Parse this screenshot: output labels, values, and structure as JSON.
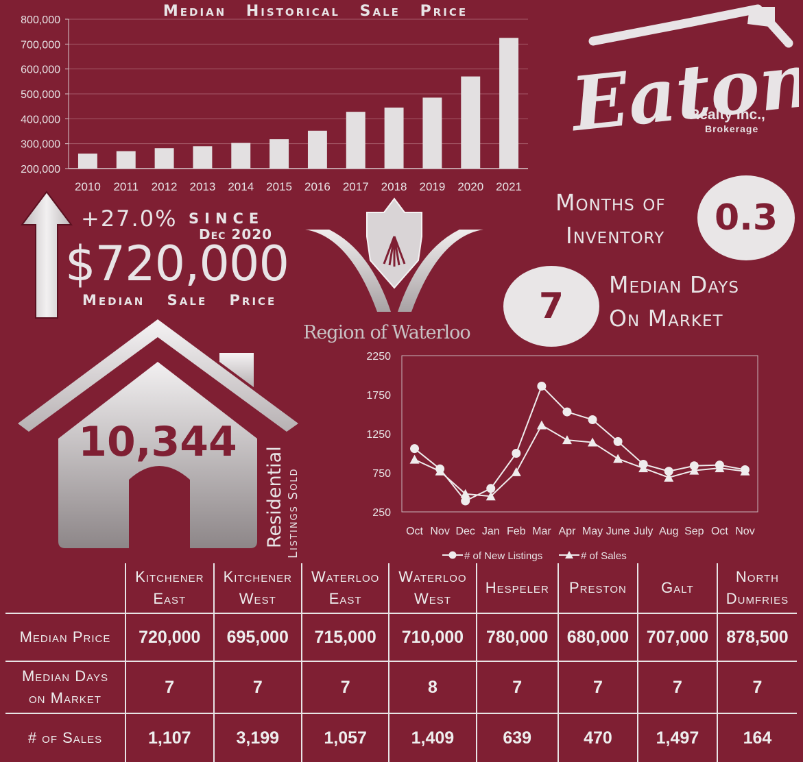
{
  "bar_chart_title": "Median Historical Sale Price",
  "logo": {
    "name": "Eaton",
    "line1": "Realty Inc.,",
    "line2": "Brokerage"
  },
  "price_panel": {
    "change": "+27.0%",
    "since_label": "since",
    "since_date": "Dec 2020",
    "price": "$720,000",
    "caption": "Median Sale Price"
  },
  "region_logo_text": "Region of Waterloo",
  "inventory": {
    "label_line1": "Months of",
    "label_line2": "Inventory",
    "value": "0.3"
  },
  "days_on_market": {
    "value": "7",
    "label_line1": "Median Days",
    "label_line2": "On Market"
  },
  "listings": {
    "value": "10,344",
    "label1": "Residential",
    "label2": "Listings Sold"
  },
  "chart_data": [
    {
      "type": "bar",
      "title": "Median Historical Sale Price",
      "categories": [
        "2010",
        "2011",
        "2012",
        "2013",
        "2014",
        "2015",
        "2016",
        "2017",
        "2018",
        "2019",
        "2020",
        "2021"
      ],
      "values": [
        260000,
        270000,
        282000,
        290000,
        303000,
        318000,
        352000,
        428000,
        445000,
        485000,
        570000,
        725000
      ],
      "ylim": [
        200000,
        800000
      ],
      "yticks": [
        200000,
        300000,
        400000,
        500000,
        600000,
        700000,
        800000
      ],
      "ytick_labels": [
        "200,000",
        "300,000",
        "400,000",
        "500,000",
        "600,000",
        "700,000",
        "800,000"
      ],
      "grid": true,
      "bar_color": "#e3e0e1"
    },
    {
      "type": "line",
      "categories": [
        "Oct",
        "Nov",
        "Dec",
        "Jan",
        "Feb",
        "Mar",
        "Apr",
        "May",
        "June",
        "July",
        "Aug",
        "Sep",
        "Oct",
        "Nov"
      ],
      "series": [
        {
          "name": "# of New Listings",
          "marker": "circle",
          "values": [
            1060,
            800,
            390,
            550,
            1000,
            1860,
            1530,
            1430,
            1150,
            860,
            770,
            840,
            850,
            790
          ]
        },
        {
          "name": "# of Sales",
          "marker": "triangle",
          "values": [
            920,
            770,
            480,
            450,
            760,
            1360,
            1170,
            1140,
            930,
            810,
            690,
            780,
            810,
            770
          ]
        }
      ],
      "ylim": [
        250,
        2250
      ],
      "yticks": [
        250,
        750,
        1250,
        1750,
        2250
      ],
      "legend_position": "bottom",
      "grid": false
    }
  ],
  "table": {
    "columns": [
      "Kitchener East",
      "Kitchener West",
      "Waterloo East",
      "Waterloo West",
      "Hespeler",
      "Preston",
      "Galt",
      "North Dumfries"
    ],
    "columns_line1": [
      "Kitchener",
      "Kitchener",
      "Waterloo",
      "Waterloo",
      "Hespeler",
      "Preston",
      "Galt",
      "North"
    ],
    "columns_line2": [
      "East",
      "West",
      "East",
      "West",
      "",
      "",
      "",
      "Dumfries"
    ],
    "rows": [
      {
        "label": "Median Price",
        "label1": "Median Price",
        "label2": "",
        "values": [
          "720,000",
          "695,000",
          "715,000",
          "710,000",
          "780,000",
          "680,000",
          "707,000",
          "878,500"
        ]
      },
      {
        "label": "Median Days on Market",
        "label1": "Median Days",
        "label2": "on Market",
        "values": [
          "7",
          "7",
          "7",
          "8",
          "7",
          "7",
          "7",
          "7"
        ]
      },
      {
        "label": "# of Sales",
        "label1": "# of Sales",
        "label2": "",
        "values": [
          "1,107",
          "3,199",
          "1,057",
          "1,409",
          "639",
          "470",
          "1,497",
          "164"
        ]
      }
    ]
  },
  "colors": {
    "background": "#7f1f33",
    "foreground": "#e8e4e6",
    "accent_text": "#7f1f33"
  }
}
